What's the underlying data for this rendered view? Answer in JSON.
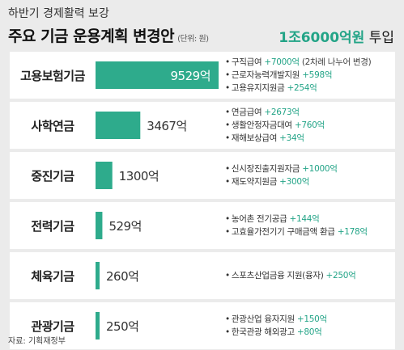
{
  "header": {
    "subtitle": "하반기 경제활력 보강",
    "title": "주요 기금 운용계획 변경안",
    "unit": "(단위: 원)",
    "total_accent": "1조6000억원",
    "total_suffix": " 투입"
  },
  "colors": {
    "accent": "#23a487",
    "bar": "#2eab8c",
    "row_bg": "#ffffff",
    "divider": "#bbbbbb"
  },
  "chart_data": {
    "type": "bar",
    "orientation": "horizontal",
    "title": "주요 기금 운용계획 변경안",
    "categories": [
      "고용보험기금",
      "사학연금",
      "중진기금",
      "전력기금",
      "체육기금",
      "관광기금"
    ],
    "values": [
      9529,
      3467,
      1300,
      529,
      260,
      250
    ],
    "value_labels": [
      "9529억",
      "3467억",
      "1300억",
      "529억",
      "260억",
      "250억"
    ],
    "unit": "억원",
    "details": [
      [
        {
          "name": "구직급여",
          "amount": "+7000억",
          "note": "(2차례 나누어 변경)"
        },
        {
          "name": "근로자능력개발지원",
          "amount": "+598억",
          "note": ""
        },
        {
          "name": "고용유지지원금",
          "amount": "+254억",
          "note": ""
        }
      ],
      [
        {
          "name": "연금급여",
          "amount": "+2673억",
          "note": ""
        },
        {
          "name": "생활안정자금대여",
          "amount": "+760억",
          "note": ""
        },
        {
          "name": "재해보상급여",
          "amount": "+34억",
          "note": ""
        }
      ],
      [
        {
          "name": "신시장진출지원자금",
          "amount": "+1000억",
          "note": ""
        },
        {
          "name": "재도약지원금",
          "amount": "+300억",
          "note": ""
        }
      ],
      [
        {
          "name": "농어촌 전기공급",
          "amount": "+144억",
          "note": ""
        },
        {
          "name": "고효율가전기기 구매금액 환급",
          "amount": "+178억",
          "note": ""
        }
      ],
      [
        {
          "name": "스포츠산업금융 지원(융자)",
          "amount": "+250억",
          "note": ""
        }
      ],
      [
        {
          "name": "관광산업 융자지원",
          "amount": "+150억",
          "note": ""
        },
        {
          "name": "한국관광 해외광고",
          "amount": "+80억",
          "note": ""
        }
      ]
    ]
  },
  "source": "자료: 기획재정부"
}
